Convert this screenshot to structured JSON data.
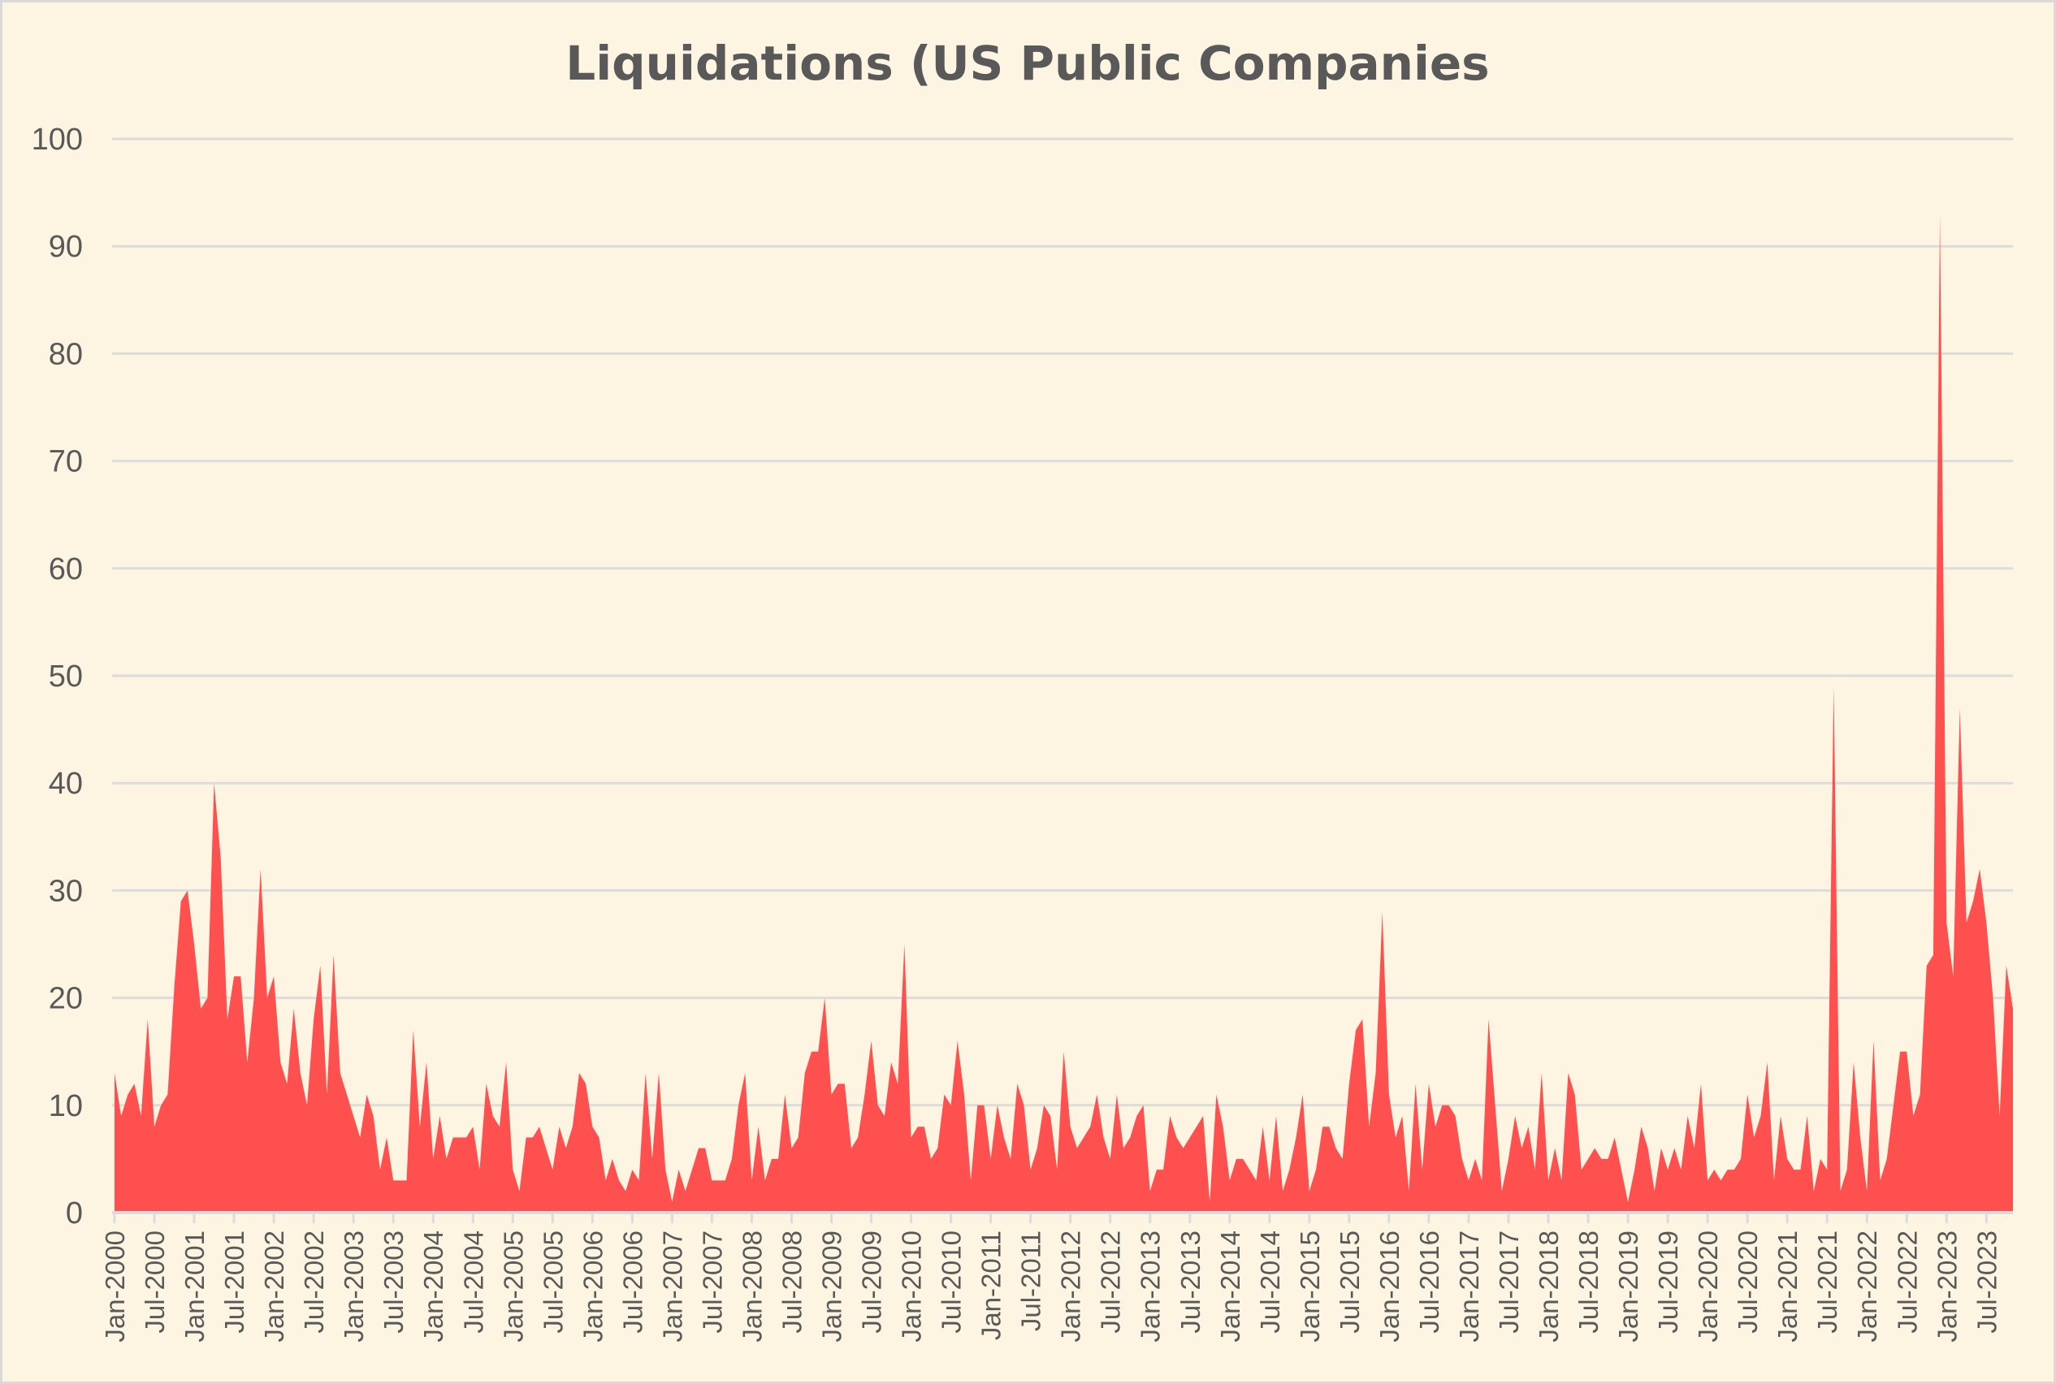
{
  "chart_data": {
    "type": "area",
    "title": "Liquidations (US Public Companies",
    "xlabel": "",
    "ylabel": "",
    "x_start": "Jan-2000",
    "x_frequency": "monthly",
    "ylim": [
      0,
      100
    ],
    "yticks": [
      0,
      10,
      20,
      30,
      40,
      50,
      60,
      70,
      80,
      90,
      100
    ],
    "grid": true,
    "legend": "none",
    "colors": {
      "area": "#ff5050",
      "background": "#fdf5e1",
      "grid": "#dcdcdc",
      "text": "#595959"
    },
    "xtick_labels": [
      "Jan-2000",
      "Jul-2000",
      "Jan-2001",
      "Jul-2001",
      "Jan-2002",
      "Jul-2002",
      "Jan-2003",
      "Jul-2003",
      "Jan-2004",
      "Jul-2004",
      "Jan-2005",
      "Jul-2005",
      "Jan-2006",
      "Jul-2006",
      "Jan-2007",
      "Jul-2007",
      "Jan-2008",
      "Jul-2008",
      "Jan-2009",
      "Jul-2009",
      "Jan-2010",
      "Jul-2010",
      "Jan-2011",
      "Jul-2011",
      "Jan-2012",
      "Jul-2012",
      "Jan-2013",
      "Jul-2013",
      "Jan-2014",
      "Jul-2014",
      "Jan-2015",
      "Jul-2015",
      "Jan-2016",
      "Jul-2016",
      "Jan-2017",
      "Jul-2017",
      "Jan-2018",
      "Jul-2018",
      "Jan-2019",
      "Jul-2019",
      "Jan-2020",
      "Jul-2020",
      "Jan-2021",
      "Jul-2021",
      "Jan-2022",
      "Jul-2022",
      "Jan-2023",
      "Jul-2023"
    ],
    "values": [
      13,
      9,
      11,
      12,
      9,
      18,
      8,
      10,
      11,
      21,
      29,
      30,
      25,
      19,
      20,
      40,
      33,
      18,
      22,
      22,
      14,
      20,
      32,
      20,
      22,
      14,
      12,
      19,
      13,
      10,
      18,
      23,
      11,
      24,
      13,
      11,
      9,
      7,
      11,
      9,
      4,
      7,
      3,
      3,
      3,
      17,
      8,
      14,
      5,
      9,
      5,
      7,
      7,
      7,
      8,
      4,
      12,
      9,
      8,
      14,
      4,
      2,
      7,
      7,
      8,
      6,
      4,
      8,
      6,
      8,
      13,
      12,
      8,
      7,
      3,
      5,
      3,
      2,
      4,
      3,
      13,
      5,
      13,
      4,
      1,
      4,
      2,
      4,
      6,
      6,
      3,
      3,
      3,
      5,
      10,
      13,
      3,
      8,
      3,
      5,
      5,
      11,
      6,
      7,
      13,
      15,
      15,
      20,
      11,
      12,
      12,
      6,
      7,
      11,
      16,
      10,
      9,
      14,
      12,
      25,
      7,
      8,
      8,
      5,
      6,
      11,
      10,
      16,
      11,
      3,
      10,
      10,
      5,
      10,
      7,
      5,
      12,
      10,
      4,
      6,
      10,
      9,
      4,
      15,
      8,
      6,
      7,
      8,
      11,
      7,
      5,
      11,
      6,
      7,
      9,
      10,
      2,
      4,
      4,
      9,
      7,
      6,
      7,
      8,
      9,
      1,
      11,
      8,
      3,
      5,
      5,
      4,
      3,
      8,
      3,
      9,
      2,
      4,
      7,
      11,
      2,
      4,
      8,
      8,
      6,
      5,
      12,
      17,
      18,
      8,
      13,
      28,
      11,
      7,
      9,
      2,
      12,
      4,
      12,
      8,
      10,
      10,
      9,
      5,
      3,
      5,
      3,
      18,
      10,
      2,
      5,
      9,
      6,
      8,
      4,
      13,
      3,
      6,
      3,
      13,
      11,
      4,
      5,
      6,
      5,
      5,
      7,
      4,
      1,
      4,
      8,
      6,
      2,
      6,
      4,
      6,
      4,
      9,
      6,
      12,
      3,
      4,
      3,
      4,
      4,
      5,
      11,
      7,
      9,
      14,
      3,
      9,
      5,
      4,
      4,
      9,
      2,
      5,
      4,
      49,
      2,
      4,
      14,
      7,
      2,
      16,
      3,
      5,
      10,
      15,
      15,
      9,
      11,
      23,
      24,
      93,
      27,
      22,
      47,
      27,
      29,
      32,
      27,
      20,
      9,
      23,
      19
    ]
  }
}
